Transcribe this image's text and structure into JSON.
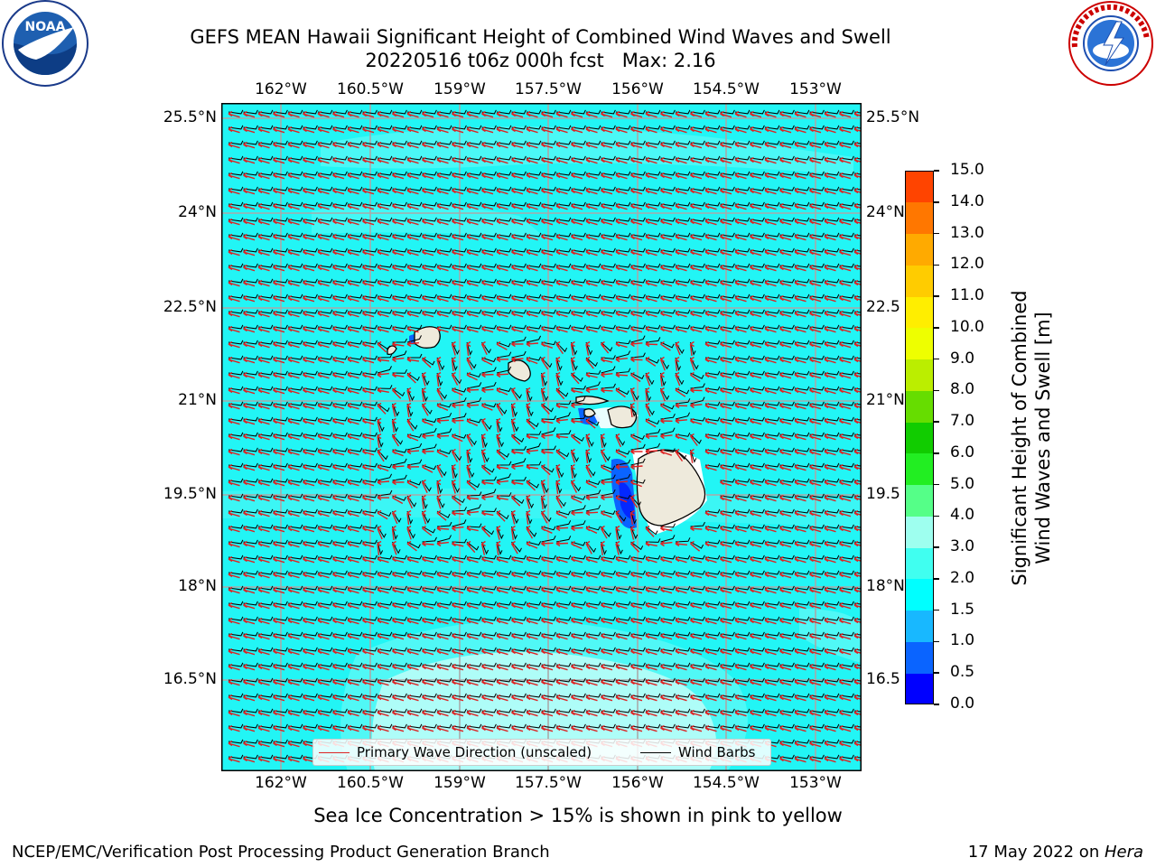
{
  "title": {
    "line1": "GEFS MEAN Hawaii Significant Height of Combined Wind Waves and Swell",
    "line2": "20220516 t06z 000h fcst   Max: 2.16"
  },
  "logos": {
    "left": "noaa-logo",
    "right": "nws-logo"
  },
  "axes": {
    "lon_labels": [
      "162°W",
      "160.5°W",
      "159°W",
      "157.5°W",
      "156°W",
      "154.5°W",
      "153°W"
    ],
    "lat_labels": [
      "25.5°N",
      "24°N",
      "22.5°N",
      "21°N",
      "19.5°N",
      "18°N",
      "16.5°N"
    ],
    "lat_labels_right": [
      "25.5°N",
      "24°N",
      "22.5",
      "21°N",
      "19.5",
      "18°N",
      "16.5"
    ]
  },
  "legend": {
    "wave_label": "Primary Wave Direction (unscaled)",
    "barb_label": "Wind Barbs",
    "wave_color": "#dd2222",
    "barb_color": "#000000"
  },
  "colorbar": {
    "label_line1": "Significant Height of Combined",
    "label_line2": "Wind Waves and Swell [m]",
    "ticks": [
      "0.0",
      "0.5",
      "1.0",
      "1.5",
      "2.0",
      "3.0",
      "4.0",
      "5.0",
      "6.0",
      "7.0",
      "8.0",
      "9.0",
      "10.0",
      "11.0",
      "12.0",
      "13.0",
      "14.0",
      "15.0"
    ],
    "colors": [
      "#0000ff",
      "#0a64ff",
      "#18b8ff",
      "#00ffff",
      "#40fff0",
      "#9effef",
      "#55ff88",
      "#22ee22",
      "#11cc00",
      "#66dd00",
      "#bbee00",
      "#eeff00",
      "#ffee00",
      "#ffcc00",
      "#ffaa00",
      "#ff7700",
      "#ff4400",
      "#ff0000"
    ]
  },
  "map_colors": {
    "sea": "#22f5f5",
    "sea_light": "#5cf9f6",
    "sea_pale": "#aefdf8",
    "land": "#eeeadc",
    "grid": "#a9a9a9"
  },
  "notes": {
    "sea_ice": "Sea Ice Concentration > 15% is shown in pink to yellow"
  },
  "footer": {
    "left": "NCEP/EMC/Verification Post Processing Product Generation Branch",
    "right_prefix": "17 May 2022 on ",
    "right_host": "Hera"
  }
}
